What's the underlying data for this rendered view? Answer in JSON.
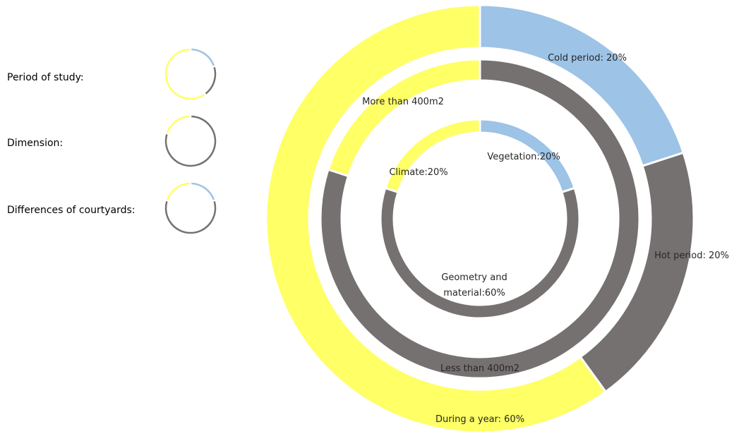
{
  "chart_data": {
    "type": "donut",
    "rings": [
      {
        "name": "Period of study:",
        "labels": [
          "Cold period: 20%",
          "Hot period: 20%",
          "During a year: 60%"
        ],
        "values": [
          20,
          20,
          60
        ],
        "colors": [
          "#9dc3e6",
          "#767171",
          "#ffff66"
        ]
      },
      {
        "name": "Dimension:",
        "labels": [
          "Less than 400m2",
          "More than 400m2"
        ],
        "values": [
          80,
          20
        ],
        "colors": [
          "#767171",
          "#ffff66"
        ]
      },
      {
        "name": "Differences of courtyards:",
        "labels": [
          "Vegetation:20%",
          "Geometry and material:60%",
          "Climate:20%"
        ],
        "values": [
          20,
          60,
          20
        ],
        "colors": [
          "#9dc3e6",
          "#767171",
          "#ffff66"
        ]
      }
    ]
  }
}
